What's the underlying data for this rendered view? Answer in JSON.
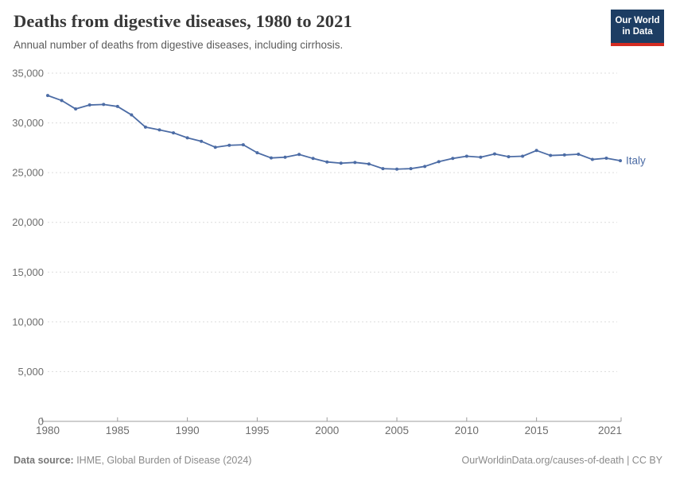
{
  "header": {
    "title": "Deaths from digestive diseases, 1980 to 2021",
    "subtitle": "Annual number of deaths from digestive diseases, including cirrhosis.",
    "logo": {
      "line1": "Our World",
      "line2": "in Data"
    }
  },
  "chart_data": {
    "type": "line",
    "title": "Deaths from digestive diseases, 1980 to 2021",
    "subtitle": "Annual number of deaths from digestive diseases, including cirrhosis.",
    "xlabel": "",
    "ylabel": "",
    "xlim": [
      1980,
      2021
    ],
    "ylim": [
      0,
      35000
    ],
    "grid": "horizontal-dashed",
    "legend_position": "line-end-label",
    "xticks": [
      1980,
      1985,
      1990,
      1995,
      2000,
      2005,
      2010,
      2015,
      2021
    ],
    "yticks": [
      0,
      5000,
      10000,
      15000,
      20000,
      25000,
      30000,
      35000
    ],
    "x": [
      1980,
      1981,
      1982,
      1983,
      1984,
      1985,
      1986,
      1987,
      1988,
      1989,
      1990,
      1991,
      1992,
      1993,
      1994,
      1995,
      1996,
      1997,
      1998,
      1999,
      2000,
      2001,
      2002,
      2003,
      2004,
      2005,
      2006,
      2007,
      2008,
      2009,
      2010,
      2011,
      2012,
      2013,
      2014,
      2015,
      2016,
      2017,
      2018,
      2019,
      2020,
      2021
    ],
    "series": [
      {
        "name": "Italy",
        "color": "#4c6ca5",
        "values": [
          32750,
          32250,
          31400,
          31800,
          31850,
          31650,
          30800,
          29575,
          29300,
          29000,
          28500,
          28150,
          27550,
          27750,
          27800,
          27000,
          26475,
          26550,
          26825,
          26425,
          26075,
          25950,
          26025,
          25875,
          25400,
          25350,
          25400,
          25625,
          26100,
          26425,
          26650,
          26550,
          26875,
          26600,
          26650,
          27225,
          26725,
          26775,
          26850,
          26325,
          26450,
          26200
        ]
      }
    ],
    "colors": {
      "grid": "#dcdcdc",
      "axis": "#9e9e9e",
      "tick_label": "#6d6d6d"
    }
  },
  "footer": {
    "source_label": "Data source:",
    "source_value": " IHME, Global Burden of Disease (2024)",
    "url": "OurWorldinData.org/causes-of-death",
    "license": " | CC BY"
  }
}
